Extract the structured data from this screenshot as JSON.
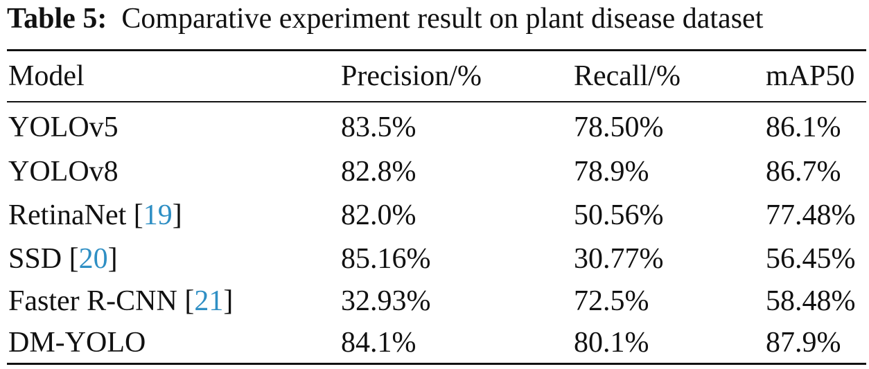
{
  "caption": {
    "label": "Table 5:",
    "text": "Comparative experiment result on plant disease dataset"
  },
  "table": {
    "columns": [
      "Model",
      "Precision/%",
      "Recall/%",
      "mAP50"
    ],
    "rows": [
      {
        "model": "YOLOv5",
        "ref": "",
        "precision": "83.5%",
        "recall": "78.50%",
        "map50": "86.1%"
      },
      {
        "model": "YOLOv8",
        "ref": "",
        "precision": "82.8%",
        "recall": "78.9%",
        "map50": "86.7%"
      },
      {
        "model": "RetinaNet",
        "ref": "19",
        "precision": "82.0%",
        "recall": "50.56%",
        "map50": "77.48%"
      },
      {
        "model": "SSD",
        "ref": "20",
        "precision": "85.16%",
        "recall": "30.77%",
        "map50": "56.45%"
      },
      {
        "model": "Faster R-CNN",
        "ref": "21",
        "precision": "32.93%",
        "recall": "72.5%",
        "map50": "58.48%"
      },
      {
        "model": "DM-YOLO",
        "ref": "",
        "precision": "84.1%",
        "recall": "80.1%",
        "map50": "87.9%"
      }
    ]
  },
  "colors": {
    "text": "#111111",
    "reference_link": "#2f8fc4"
  }
}
